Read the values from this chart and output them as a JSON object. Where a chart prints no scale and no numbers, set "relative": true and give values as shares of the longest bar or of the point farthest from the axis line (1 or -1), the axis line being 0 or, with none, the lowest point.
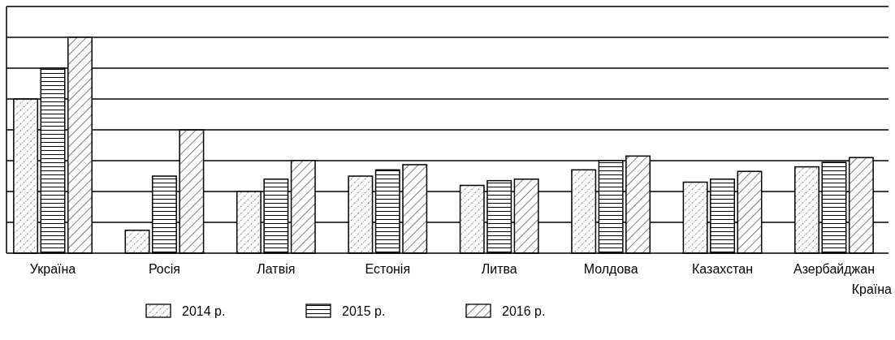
{
  "chart_data": {
    "type": "bar",
    "relative": true,
    "xlabel": "Країна",
    "grid": "y",
    "legend": "bottom",
    "categories": [
      "Україна",
      "Росія",
      "Латвія",
      "Естонія",
      "Литва",
      "Молдова",
      "Казахстан",
      "Азербайджан"
    ],
    "series": [
      {
        "name": "2014 р.",
        "color": "#000000",
        "values": [
          0.714,
          0.106,
          0.286,
          0.357,
          0.314,
          0.386,
          0.329,
          0.4
        ]
      },
      {
        "name": "2015 р.",
        "color": "#000000",
        "values": [
          0.857,
          0.357,
          0.343,
          0.386,
          0.336,
          0.429,
          0.343,
          0.421
        ]
      },
      {
        "name": "2016 р.",
        "color": "#000000",
        "values": [
          1,
          0.571,
          0.429,
          0.41,
          0.343,
          0.45,
          0.379,
          0.443
        ]
      }
    ]
  }
}
